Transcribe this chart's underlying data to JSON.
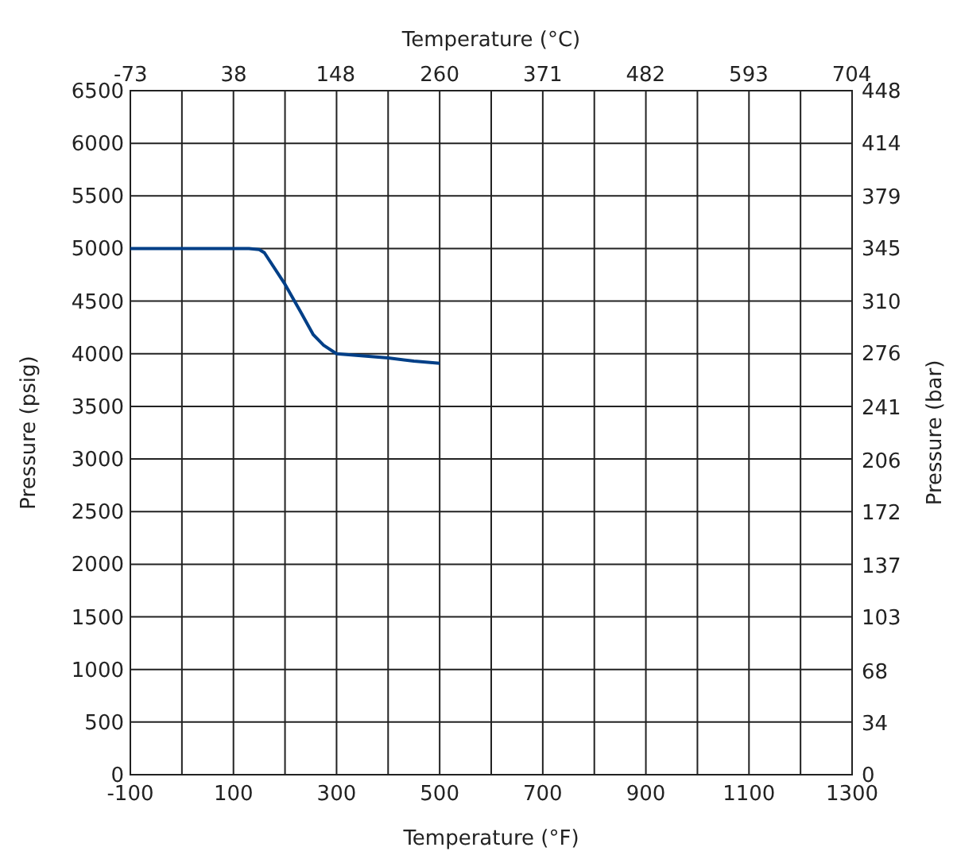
{
  "chart_data": {
    "type": "line",
    "xlabel": "Temperature (°F)",
    "x2label": "Temperature (°C)",
    "ylabel": "Pressure (psig)",
    "y2label": "Pressure (bar)",
    "x": [
      -100,
      130,
      150,
      160,
      200,
      230,
      255,
      275,
      300,
      400,
      450,
      500
    ],
    "series": [
      {
        "color": "#003f87",
        "values": [
          5000,
          5000,
          4990,
          4960,
          4660,
          4400,
          4180,
          4080,
          4000,
          3960,
          3930,
          3910
        ]
      }
    ],
    "xlim": [
      -100,
      1300
    ],
    "xticks": [
      -100,
      {
        "value": 0,
        "label": null
      },
      100,
      {
        "value": 200,
        "label": null
      },
      300,
      {
        "value": 400,
        "label": null
      },
      500,
      {
        "value": 600,
        "label": null
      },
      700,
      {
        "value": 800,
        "label": null
      },
      900,
      {
        "value": 1000,
        "label": null
      },
      1100,
      {
        "value": 1200,
        "label": null
      },
      1300
    ],
    "x2lim": [
      -73.3,
      704.4
    ],
    "x2ticks": [
      -73,
      38,
      148,
      260,
      371,
      482,
      593,
      704
    ],
    "ylim": [
      0,
      6500
    ],
    "yticks": [
      0,
      500,
      1000,
      1500,
      2000,
      2500,
      3000,
      3500,
      4000,
      4500,
      5000,
      5500,
      6000,
      6500
    ],
    "y2lim": [
      0,
      448.2
    ],
    "y2ticks": [
      0,
      34,
      68,
      103,
      137,
      172,
      206,
      241,
      276,
      310,
      345,
      379,
      414,
      448
    ],
    "grid": true,
    "line_style": "solid",
    "marker": "none"
  }
}
